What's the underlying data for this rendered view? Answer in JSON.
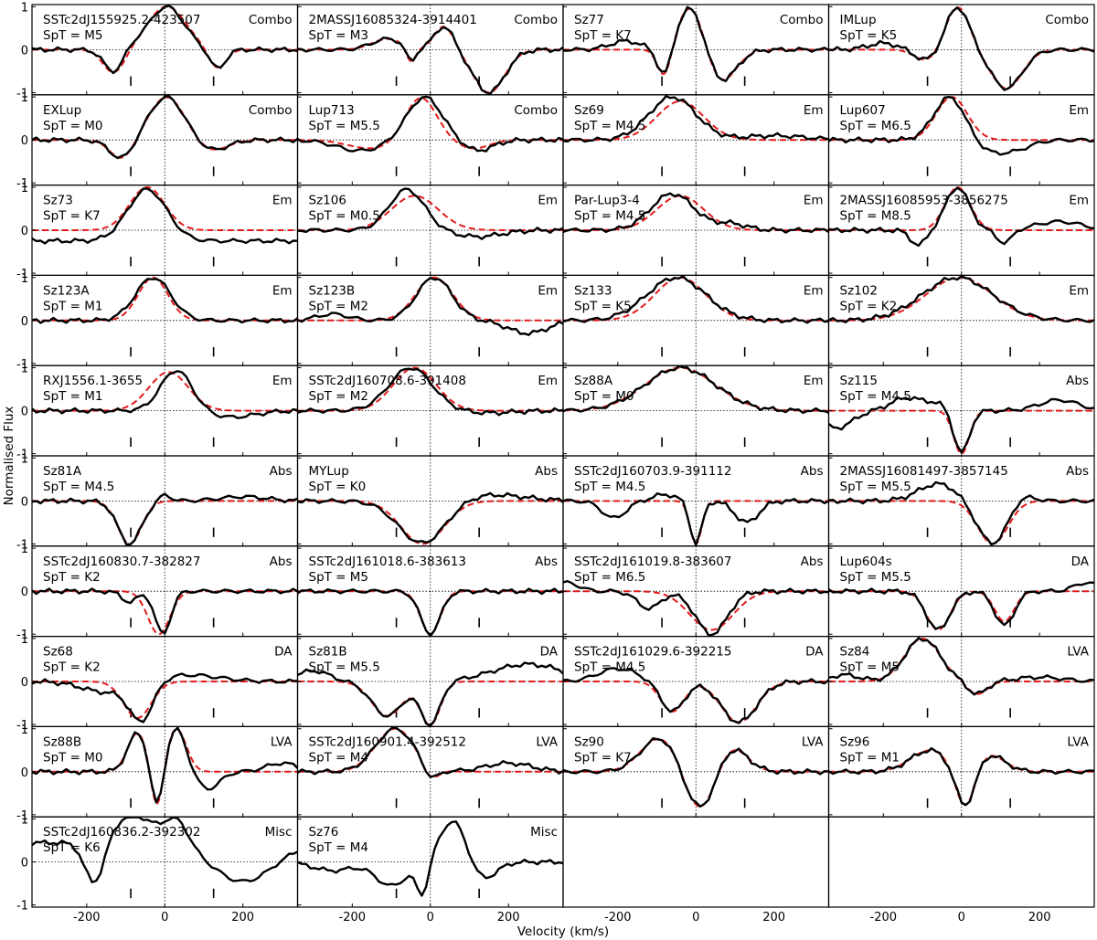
{
  "chart_data": {
    "type": "line",
    "xlabel": "Velocity (km/s)",
    "ylabel": "Normalised Flux",
    "xlim": [
      -340,
      340
    ],
    "ylim": [
      -1.05,
      1.05
    ],
    "xticks": [
      -200,
      0,
      200
    ],
    "xtick_labels": [
      "-200",
      "0",
      "200"
    ],
    "yticks": [
      1,
      0,
      -1
    ],
    "ytick_labels": [
      "1",
      "0",
      "-1"
    ],
    "guides": {
      "vertical_x": 0,
      "horizontal_y": 0,
      "style": "dotted"
    },
    "vertical_markers_x": [
      -87,
      125
    ],
    "series_styles": {
      "data": "black solid",
      "model": "red dashed"
    },
    "colors": {
      "data": "#000000",
      "model": "#e41a1c"
    },
    "grid_layout": {
      "columns": 4,
      "rows": 10
    },
    "panels": [
      {
        "name": "SSTc2dJ155925.2-423507",
        "spt": "SpT = M5",
        "category": "Combo",
        "components": [
          [
            0.1,
            -90,
            30
          ],
          [
            1.0,
            5,
            45
          ],
          [
            -0.55,
            -130,
            25
          ],
          [
            -0.45,
            135,
            20
          ]
        ],
        "model": [
          [
            1.0,
            5,
            50
          ],
          [
            -0.55,
            -130,
            28
          ],
          [
            -0.45,
            135,
            22
          ]
        ]
      },
      {
        "name": "2MASSJ16085324-3914401",
        "spt": "SpT = M3",
        "category": "Combo",
        "components": [
          [
            0.25,
            -110,
            40
          ],
          [
            0.55,
            35,
            25
          ],
          [
            -0.35,
            -50,
            12
          ],
          [
            -1.0,
            150,
            40
          ]
        ],
        "model": [
          [
            0.25,
            -110,
            40
          ],
          [
            0.55,
            35,
            25
          ],
          [
            -0.35,
            -50,
            12
          ],
          [
            -1.0,
            150,
            40
          ]
        ]
      },
      {
        "name": "Sz77",
        "spt": "SpT = K7",
        "category": "Combo",
        "components": [
          [
            0.2,
            -180,
            40
          ],
          [
            1.1,
            -10,
            35
          ],
          [
            -0.7,
            -80,
            18
          ],
          [
            -0.8,
            60,
            40
          ]
        ],
        "model": [
          [
            1.1,
            -10,
            35
          ],
          [
            -0.7,
            -80,
            18
          ],
          [
            -0.8,
            60,
            40
          ]
        ]
      },
      {
        "name": "IMLup",
        "spt": "SpT = K5",
        "category": "Combo",
        "components": [
          [
            0.15,
            -200,
            40
          ],
          [
            1.0,
            -10,
            30
          ],
          [
            -0.9,
            115,
            40
          ],
          [
            -0.25,
            -90,
            30
          ]
        ],
        "model": [
          [
            1.0,
            -10,
            30
          ],
          [
            -0.9,
            115,
            40
          ],
          [
            -0.25,
            -90,
            30
          ]
        ]
      },
      {
        "name": "EXLup",
        "spt": "SpT = M0",
        "category": "Combo",
        "components": [
          [
            1.0,
            5,
            45
          ],
          [
            -0.45,
            -110,
            30
          ],
          [
            -0.25,
            120,
            40
          ]
        ],
        "model": [
          [
            1.0,
            5,
            45
          ],
          [
            -0.45,
            -110,
            30
          ],
          [
            -0.25,
            120,
            40
          ]
        ]
      },
      {
        "name": "Lup713",
        "spt": "SpT = M5.5",
        "category": "Combo",
        "components": [
          [
            1.0,
            -15,
            45
          ],
          [
            -0.25,
            -180,
            60
          ],
          [
            -0.25,
            120,
            40
          ]
        ],
        "model": [
          [
            1.0,
            -25,
            40
          ],
          [
            -0.2,
            -150,
            60
          ],
          [
            -0.2,
            110,
            40
          ]
        ]
      },
      {
        "name": "Sz69",
        "spt": "SpT = M4.5",
        "category": "Em",
        "components": [
          [
            1.0,
            -60,
            60
          ],
          [
            0.1,
            200,
            80
          ]
        ],
        "model": [
          [
            0.9,
            -40,
            60
          ]
        ]
      },
      {
        "name": "Lup607",
        "spt": "SpT = M6.5",
        "category": "Em",
        "components": [
          [
            1.0,
            -30,
            40
          ],
          [
            -0.25,
            70,
            40
          ],
          [
            -0.2,
            140,
            40
          ]
        ],
        "model": [
          [
            1.0,
            -25,
            40
          ]
        ]
      },
      {
        "name": "Sz73",
        "spt": "SpT = K7",
        "category": "Em",
        "components": [
          [
            1.2,
            -45,
            50
          ],
          [
            -0.25,
            0,
            4000
          ]
        ],
        "model": [
          [
            1.0,
            -45,
            45
          ]
        ]
      },
      {
        "name": "Sz106",
        "spt": "SpT = M0.5",
        "category": "Em",
        "components": [
          [
            0.95,
            -60,
            45
          ],
          [
            -0.15,
            120,
            60
          ]
        ],
        "model": [
          [
            0.8,
            -40,
            60
          ]
        ]
      },
      {
        "name": "Par-Lup3-4",
        "spt": "SpT = M4.5",
        "category": "Em",
        "components": [
          [
            0.85,
            -60,
            55
          ],
          [
            0.15,
            90,
            40
          ]
        ],
        "model": [
          [
            0.8,
            -40,
            60
          ]
        ]
      },
      {
        "name": "2MASSJ16085953-3856275",
        "spt": "SpT = M8.5",
        "category": "Em",
        "components": [
          [
            1.0,
            -10,
            30
          ],
          [
            -0.35,
            -110,
            20
          ],
          [
            -0.3,
            110,
            20
          ],
          [
            0.2,
            250,
            60
          ]
        ],
        "model": [
          [
            1.0,
            -10,
            32
          ]
        ]
      },
      {
        "name": "Sz123A",
        "spt": "SpT = M1",
        "category": "Em",
        "components": [
          [
            1.0,
            -30,
            45
          ]
        ],
        "model": [
          [
            1.0,
            -30,
            38
          ]
        ]
      },
      {
        "name": "Sz123B",
        "spt": "SpT = M2",
        "category": "Em",
        "components": [
          [
            1.0,
            10,
            45
          ],
          [
            -0.3,
            250,
            50
          ],
          [
            0.15,
            -250,
            40
          ]
        ],
        "model": [
          [
            1.0,
            10,
            48
          ]
        ]
      },
      {
        "name": "Sz133",
        "spt": "SpT = K5",
        "category": "Em",
        "components": [
          [
            1.0,
            -50,
            75
          ]
        ],
        "model": [
          [
            1.0,
            -40,
            65
          ]
        ]
      },
      {
        "name": "Sz102",
        "spt": "SpT = K2",
        "category": "Em",
        "components": [
          [
            1.0,
            -10,
            90
          ]
        ],
        "model": [
          [
            1.0,
            -5,
            85
          ]
        ]
      },
      {
        "name": "RXJ1556.1-3655",
        "spt": "SpT = M1",
        "category": "Em",
        "components": [
          [
            0.95,
            30,
            40
          ],
          [
            -0.15,
            170,
            60
          ]
        ],
        "model": [
          [
            0.9,
            10,
            50
          ]
        ]
      },
      {
        "name": "SSTc2dJ160708.6-391408",
        "spt": "SpT = M2",
        "category": "Em",
        "components": [
          [
            1.0,
            -50,
            55
          ],
          [
            -0.05,
            150,
            60
          ]
        ],
        "model": [
          [
            1.0,
            -40,
            55
          ]
        ]
      },
      {
        "name": "Sz88A",
        "spt": "SpT = M0",
        "category": "Em",
        "components": [
          [
            1.0,
            -40,
            90
          ]
        ],
        "model": [
          [
            1.0,
            -40,
            90
          ]
        ]
      },
      {
        "name": "Sz115",
        "spt": "SpT = M4.5",
        "category": "Abs",
        "components": [
          [
            -1.0,
            0,
            20
          ],
          [
            0.3,
            -140,
            40
          ],
          [
            -0.4,
            -320,
            40
          ],
          [
            0.25,
            250,
            50
          ],
          [
            0.15,
            -60,
            30
          ]
        ],
        "model": [
          [
            -1.0,
            0,
            20
          ]
        ]
      },
      {
        "name": "Sz81A",
        "spt": "SpT = M4.5",
        "category": "Abs",
        "components": [
          [
            -1.0,
            -90,
            30
          ],
          [
            0.15,
            0,
            15
          ],
          [
            0.1,
            200,
            60
          ]
        ],
        "model": [
          [
            -1.0,
            -90,
            30
          ]
        ]
      },
      {
        "name": "MYLup",
        "spt": "SpT = K0",
        "category": "Abs",
        "components": [
          [
            -1.0,
            -20,
            60
          ],
          [
            0.15,
            150,
            90
          ]
        ],
        "model": [
          [
            -1.0,
            -20,
            55
          ]
        ]
      },
      {
        "name": "SSTc2dJ160703.9-391112",
        "spt": "SpT = M4.5",
        "category": "Abs",
        "components": [
          [
            -1.0,
            0,
            15
          ],
          [
            -0.4,
            -210,
            30
          ],
          [
            -0.5,
            130,
            30
          ],
          [
            0.15,
            -80,
            30
          ]
        ],
        "model": [
          [
            -1.0,
            0,
            15
          ]
        ]
      },
      {
        "name": "2MASSJ16081497-3857145",
        "spt": "SpT = M5.5",
        "category": "Abs",
        "components": [
          [
            -1.0,
            80,
            40
          ],
          [
            0.4,
            -60,
            50
          ],
          [
            0.2,
            150,
            30
          ]
        ],
        "model": [
          [
            -1.0,
            80,
            38
          ]
        ]
      },
      {
        "name": "SSTc2dJ160830.7-382827",
        "spt": "SpT = K2",
        "category": "Abs",
        "components": [
          [
            -1.0,
            -5,
            20
          ],
          [
            -0.25,
            -90,
            20
          ]
        ],
        "model": [
          [
            -1.0,
            -15,
            28
          ]
        ]
      },
      {
        "name": "SSTc2dJ161018.6-383613",
        "spt": "SpT = M5",
        "category": "Abs",
        "components": [
          [
            -1.0,
            0,
            25
          ]
        ],
        "model": [
          [
            -1.0,
            0,
            25
          ]
        ]
      },
      {
        "name": "SSTc2dJ161019.8-383607",
        "spt": "SpT = M6.5",
        "category": "Abs",
        "components": [
          [
            -1.0,
            40,
            40
          ],
          [
            -0.4,
            -120,
            30
          ],
          [
            0.2,
            -330,
            30
          ]
        ],
        "model": [
          [
            -0.9,
            40,
            55
          ]
        ]
      },
      {
        "name": "Lup604s",
        "spt": "SpT = M5.5",
        "category": "DA",
        "components": [
          [
            -0.9,
            -60,
            30
          ],
          [
            -0.8,
            110,
            25
          ],
          [
            0.2,
            320,
            30
          ]
        ],
        "model": [
          [
            -0.9,
            -60,
            30
          ],
          [
            -0.7,
            110,
            25
          ]
        ]
      },
      {
        "name": "Sz68",
        "spt": "SpT = K2",
        "category": "DA",
        "components": [
          [
            -0.9,
            -60,
            30
          ],
          [
            0.15,
            60,
            80
          ],
          [
            -0.25,
            -150,
            60
          ]
        ],
        "model": [
          [
            -0.85,
            -70,
            35
          ]
        ]
      },
      {
        "name": "Sz81B",
        "spt": "SpT = M5.5",
        "category": "DA",
        "components": [
          [
            -0.8,
            -110,
            40
          ],
          [
            -1.0,
            0,
            25
          ],
          [
            0.4,
            250,
            90
          ],
          [
            0.25,
            -300,
            40
          ]
        ],
        "model": [
          [
            -0.8,
            -110,
            40
          ],
          [
            -1.0,
            0,
            25
          ]
        ]
      },
      {
        "name": "SSTc2dJ161029.6-392215",
        "spt": "SpT = M4.5",
        "category": "DA",
        "components": [
          [
            -0.7,
            -60,
            30
          ],
          [
            -0.95,
            110,
            45
          ],
          [
            0.3,
            -200,
            50
          ]
        ],
        "model": [
          [
            -0.7,
            -60,
            30
          ],
          [
            -0.95,
            110,
            45
          ]
        ]
      },
      {
        "name": "Sz84",
        "spt": "SpT = M5",
        "category": "LVA",
        "components": [
          [
            1.0,
            -100,
            45
          ],
          [
            -0.3,
            40,
            25
          ],
          [
            0.15,
            -300,
            40
          ],
          [
            0.1,
            200,
            60
          ]
        ],
        "model": [
          [
            1.0,
            -100,
            45
          ],
          [
            -0.3,
            40,
            25
          ]
        ]
      },
      {
        "name": "Sz88B",
        "spt": "SpT = M0",
        "category": "LVA",
        "components": [
          [
            0.9,
            -70,
            25
          ],
          [
            -1.0,
            -20,
            15
          ],
          [
            1.0,
            30,
            25
          ],
          [
            -0.4,
            110,
            30
          ],
          [
            0.2,
            300,
            40
          ]
        ],
        "model": [
          [
            0.9,
            -70,
            25
          ],
          [
            -1.0,
            -20,
            15
          ],
          [
            1.0,
            30,
            25
          ]
        ]
      },
      {
        "name": "SSTc2dJ160901.4-392512",
        "spt": "SpT = M4",
        "category": "LVA",
        "components": [
          [
            1.0,
            -90,
            50
          ],
          [
            -0.3,
            0,
            20
          ],
          [
            0.2,
            200,
            60
          ]
        ],
        "model": [
          [
            1.0,
            -90,
            50
          ],
          [
            -0.3,
            0,
            20
          ]
        ]
      },
      {
        "name": "Sz90",
        "spt": "SpT = K7",
        "category": "LVA",
        "components": [
          [
            0.8,
            -90,
            50
          ],
          [
            -1.0,
            10,
            40
          ],
          [
            0.6,
            90,
            40
          ]
        ],
        "model": [
          [
            0.8,
            -90,
            50
          ],
          [
            -1.0,
            10,
            40
          ],
          [
            0.6,
            90,
            40
          ]
        ]
      },
      {
        "name": "Sz96",
        "spt": "SpT = M1",
        "category": "LVA",
        "components": [
          [
            0.5,
            -80,
            50
          ],
          [
            -1.0,
            10,
            25
          ],
          [
            0.4,
            70,
            40
          ]
        ],
        "model": [
          [
            0.5,
            -80,
            50
          ],
          [
            -1.0,
            10,
            25
          ],
          [
            0.4,
            70,
            40
          ]
        ]
      },
      {
        "name": "SSTc2dJ160836.2-392302",
        "spt": "SpT = K6",
        "category": "Misc",
        "components": [
          [
            0.45,
            0,
            4000
          ],
          [
            -1.0,
            -180,
            25
          ],
          [
            0.65,
            -80,
            50
          ],
          [
            0.6,
            30,
            30
          ],
          [
            -0.9,
            200,
            80
          ]
        ],
        "model": null
      },
      {
        "name": "Sz76",
        "spt": "SpT = M4",
        "category": "Misc",
        "components": [
          [
            1.0,
            60,
            35
          ],
          [
            -0.55,
            -100,
            40
          ],
          [
            -0.75,
            -20,
            15
          ],
          [
            -0.45,
            130,
            35
          ],
          [
            -0.2,
            -250,
            50
          ]
        ],
        "model": null
      }
    ]
  }
}
